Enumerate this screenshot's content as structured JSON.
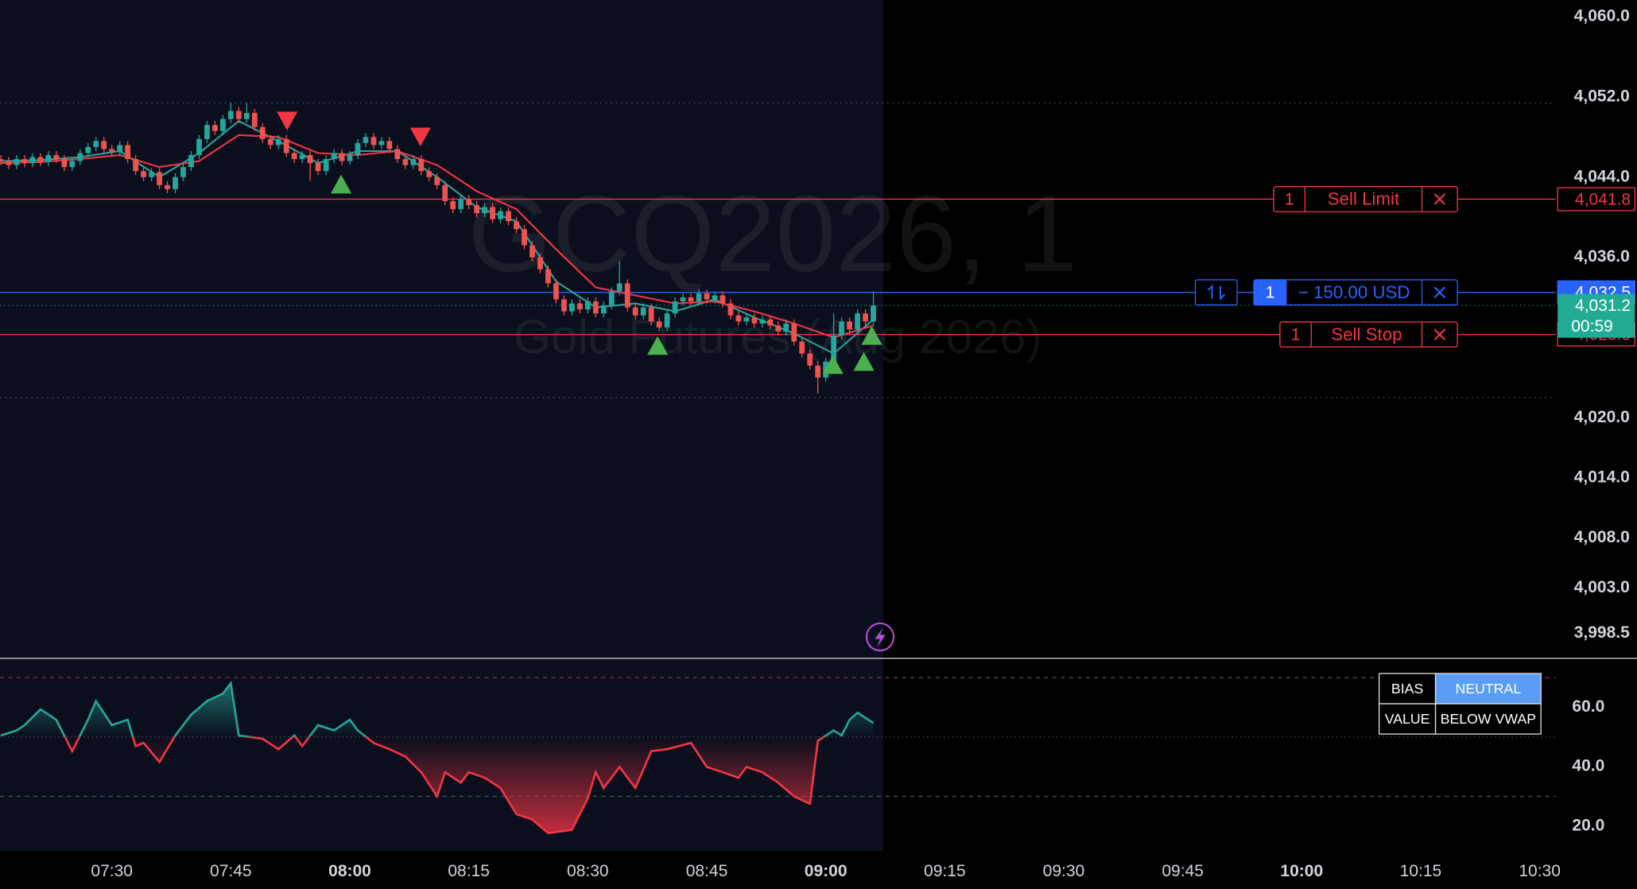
{
  "watermark": {
    "symbol": "GCQ2026, 1",
    "name": "Gold Futures (Aug 2026)"
  },
  "chart_data": [
    {
      "type": "candlestick",
      "x": [
        436,
        437,
        438,
        439,
        440,
        441,
        442,
        443,
        444,
        445,
        446,
        447,
        448,
        449,
        450,
        451,
        452,
        453,
        454,
        455,
        456,
        457,
        458,
        459,
        460,
        461,
        462,
        463,
        464,
        465,
        466,
        467,
        468,
        469,
        470,
        471,
        472,
        473,
        474,
        475,
        476,
        477,
        478,
        479,
        480,
        481,
        482,
        483,
        484,
        485,
        486,
        487,
        488,
        489,
        490,
        491,
        492,
        493,
        494,
        495,
        496,
        497,
        498,
        499,
        500,
        501,
        502,
        503,
        504,
        505,
        506,
        507,
        508,
        509,
        510,
        511,
        512,
        513,
        514,
        515,
        516,
        517,
        518,
        519,
        520,
        521,
        522,
        523,
        524,
        525,
        526,
        527,
        528,
        529,
        530,
        531,
        532,
        533,
        534,
        535,
        536,
        537,
        538,
        539,
        540,
        541,
        542,
        543,
        544,
        545,
        546
      ],
      "open": [
        4045.8,
        4045.6,
        4045.2,
        4045.8,
        4045.4,
        4046.0,
        4045.5,
        4046.2,
        4045.8,
        4045.0,
        4045.6,
        4046.4,
        4047.0,
        4047.6,
        4046.8,
        4046.5,
        4047.2,
        4045.8,
        4044.6,
        4044.0,
        4044.5,
        4043.2,
        4042.8,
        4044.0,
        4045.0,
        4046.2,
        4047.8,
        4049.2,
        4048.6,
        4049.8,
        4050.6,
        4049.8,
        4050.4,
        4049.0,
        4047.8,
        4047.2,
        4047.8,
        4046.4,
        4045.8,
        4046.2,
        4045.4,
        4044.6,
        4045.8,
        4046.4,
        4045.6,
        4046.2,
        4047.4,
        4048.0,
        4047.2,
        4047.6,
        4046.8,
        4045.8,
        4045.2,
        4045.8,
        4044.6,
        4044.0,
        4043.2,
        4041.6,
        4040.8,
        4041.8,
        4041.2,
        4040.4,
        4041.0,
        4039.8,
        4040.6,
        4039.6,
        4038.8,
        4037.2,
        4036.0,
        4034.8,
        4033.4,
        4031.8,
        4030.6,
        4031.4,
        4030.8,
        4031.6,
        4030.4,
        4031.2,
        4032.6,
        4033.4,
        4031.0,
        4030.2,
        4031.0,
        4029.6,
        4029.0,
        4030.4,
        4031.6,
        4032.0,
        4031.6,
        4032.4,
        4031.8,
        4032.2,
        4031.4,
        4030.2,
        4029.6,
        4030.0,
        4029.4,
        4029.8,
        4029.2,
        4028.6,
        4029.4,
        4027.6,
        4026.4,
        4025.2,
        4024.0,
        4025.6,
        4028.2,
        4029.6,
        4028.8,
        4030.4,
        4029.6
      ],
      "high": [
        4046.2,
        4046.0,
        4046.2,
        4046.2,
        4046.4,
        4046.4,
        4046.6,
        4046.6,
        4046.2,
        4046.0,
        4046.8,
        4047.4,
        4048.0,
        4048.0,
        4047.2,
        4047.6,
        4047.6,
        4046.2,
        4045.0,
        4044.9,
        4044.9,
        4043.6,
        4044.4,
        4045.4,
        4046.6,
        4048.2,
        4049.6,
        4049.6,
        4050.2,
        4051.4,
        4051.0,
        4051.4,
        4050.8,
        4049.4,
        4048.2,
        4048.2,
        4048.2,
        4046.8,
        4046.6,
        4046.6,
        4045.8,
        4046.2,
        4046.8,
        4046.8,
        4046.6,
        4047.8,
        4048.4,
        4048.4,
        4048.0,
        4048.0,
        4047.2,
        4046.2,
        4046.2,
        4046.2,
        4045.0,
        4044.4,
        4043.6,
        4042.0,
        4042.2,
        4042.2,
        4041.6,
        4041.4,
        4041.4,
        4041.0,
        4041.0,
        4040.0,
        4039.2,
        4037.6,
        4036.4,
        4035.2,
        4033.8,
        4032.2,
        4031.8,
        4031.8,
        4032.0,
        4032.0,
        4031.6,
        4033.0,
        4035.6,
        4033.8,
        4031.4,
        4031.4,
        4031.4,
        4030.0,
        4030.8,
        4032.0,
        4032.4,
        4032.4,
        4032.8,
        4032.8,
        4032.6,
        4032.6,
        4031.8,
        4030.6,
        4030.4,
        4030.4,
        4030.2,
        4030.2,
        4029.6,
        4029.8,
        4029.8,
        4028.0,
        4026.8,
        4025.6,
        4026.0,
        4030.4,
        4030.0,
        4030.0,
        4030.8,
        4030.8,
        4032.6
      ],
      "low": [
        4045.2,
        4044.8,
        4044.8,
        4045.0,
        4045.0,
        4045.1,
        4045.1,
        4045.4,
        4044.6,
        4044.6,
        4045.2,
        4046.0,
        4046.6,
        4046.4,
        4046.1,
        4046.1,
        4045.4,
        4044.2,
        4043.6,
        4043.6,
        4042.8,
        4042.4,
        4042.4,
        4043.6,
        4044.6,
        4045.8,
        4047.4,
        4048.2,
        4048.2,
        4049.4,
        4049.4,
        4049.4,
        4048.6,
        4047.4,
        4046.8,
        4046.8,
        4046.0,
        4045.4,
        4045.4,
        4043.6,
        4044.2,
        4044.2,
        4045.4,
        4045.2,
        4045.2,
        4045.8,
        4047.0,
        4046.8,
        4046.8,
        4046.4,
        4045.4,
        4044.8,
        4044.8,
        4044.2,
        4043.6,
        4042.8,
        4041.2,
        4040.4,
        4040.4,
        4040.8,
        4040.0,
        4040.0,
        4039.4,
        4039.4,
        4039.2,
        4038.4,
        4036.8,
        4035.6,
        4034.4,
        4033.0,
        4031.4,
        4030.2,
        4030.2,
        4030.4,
        4030.4,
        4030.0,
        4030.0,
        4030.8,
        4032.2,
        4030.6,
        4029.8,
        4029.8,
        4029.2,
        4028.6,
        4028.6,
        4030.0,
        4031.2,
        4031.2,
        4031.2,
        4031.4,
        4031.4,
        4031.0,
        4029.8,
        4029.2,
        4029.2,
        4029.0,
        4029.0,
        4028.8,
        4028.2,
        4028.2,
        4027.2,
        4026.0,
        4024.8,
        4022.4,
        4023.6,
        4025.2,
        4027.8,
        4028.4,
        4028.4,
        4029.2,
        4029.2
      ],
      "close": [
        4045.6,
        4045.2,
        4045.8,
        4045.4,
        4046.0,
        4045.5,
        4046.2,
        4045.8,
        4045.0,
        4045.6,
        4046.4,
        4047.0,
        4047.6,
        4046.8,
        4046.5,
        4047.2,
        4045.8,
        4044.6,
        4044.0,
        4044.5,
        4043.2,
        4042.8,
        4044.0,
        4045.0,
        4046.2,
        4047.8,
        4049.2,
        4048.6,
        4049.8,
        4050.6,
        4049.8,
        4050.4,
        4049.0,
        4047.8,
        4047.2,
        4047.8,
        4046.4,
        4045.8,
        4046.2,
        4045.4,
        4044.6,
        4045.8,
        4046.4,
        4045.6,
        4046.2,
        4047.4,
        4048.0,
        4047.2,
        4047.6,
        4046.8,
        4045.8,
        4045.2,
        4045.8,
        4044.6,
        4044.0,
        4043.2,
        4041.6,
        4040.8,
        4041.8,
        4041.2,
        4040.4,
        4041.0,
        4039.8,
        4040.6,
        4039.6,
        4038.8,
        4037.2,
        4036.0,
        4034.8,
        4033.4,
        4031.8,
        4030.6,
        4031.4,
        4030.8,
        4031.6,
        4030.4,
        4031.2,
        4032.6,
        4033.4,
        4031.0,
        4030.2,
        4031.0,
        4029.6,
        4029.0,
        4030.4,
        4031.6,
        4032.0,
        4031.6,
        4032.4,
        4031.8,
        4032.2,
        4031.4,
        4030.2,
        4029.6,
        4030.0,
        4029.4,
        4029.8,
        4029.2,
        4028.6,
        4029.4,
        4027.6,
        4026.4,
        4025.2,
        4024.0,
        4025.6,
        4028.2,
        4029.6,
        4028.8,
        4030.4,
        4029.6,
        4031.2
      ],
      "up_color": "#26a69a",
      "down_color": "#ef5350",
      "series": [
        {
          "color": "#26a69a",
          "x": [
            436,
            441,
            446,
            451,
            456,
            461,
            466,
            471,
            476,
            481,
            486,
            491,
            496,
            501,
            506,
            511,
            516,
            521,
            526,
            531,
            536,
            541,
            546
          ],
          "values": [
            4045.6,
            4045.7,
            4046.0,
            4046.6,
            4044.0,
            4046.4,
            4049.6,
            4047.6,
            4045.4,
            4046.6,
            4046.6,
            4044.0,
            4041.0,
            4039.6,
            4033.6,
            4031.0,
            4031.4,
            4030.6,
            4031.8,
            4030.0,
            4028.4,
            4026.4,
            4029.8
          ]
        },
        {
          "color": "#f23645",
          "x": [
            436,
            441,
            446,
            451,
            456,
            461,
            466,
            471,
            476,
            481,
            486,
            491,
            496,
            501,
            506,
            511,
            516,
            521,
            526,
            531,
            536,
            541,
            546
          ],
          "values": [
            4045.4,
            4045.5,
            4045.8,
            4046.2,
            4045.0,
            4045.6,
            4048.2,
            4048.0,
            4046.4,
            4046.2,
            4046.6,
            4045.2,
            4042.6,
            4040.8,
            4036.8,
            4033.0,
            4032.2,
            4031.4,
            4031.6,
            4030.6,
            4029.4,
            4028.0,
            4029.2
          ]
        }
      ],
      "sell_signals": {
        "color": "#f23645",
        "x": [
          472.1,
          488.9
        ],
        "y": [
          4049.7,
          4048.1
        ]
      },
      "buy_signals": {
        "color": "#4caf50",
        "x": [
          478.9,
          518.8,
          540.9,
          544.8,
          545.8
        ],
        "y": [
          4043.2,
          4027.1,
          4025.2,
          4025.5,
          4028.1
        ]
      },
      "levels": [
        4051.4,
        4022.0
      ],
      "orders": [
        {
          "quantity": 1,
          "label": "Sell Limit",
          "price": {
            "value": 4041.8,
            "label": "4,041.8"
          },
          "color": "#f23645"
        },
        {
          "quantity": 1,
          "label": "− 150.00 USD",
          "price": {
            "value": 4032.5,
            "label": "4,032.5"
          },
          "color": "#2962ff"
        },
        {
          "quantity": 1,
          "label": "Sell Stop",
          "price": {
            "value": 4028.3,
            "label": "4,028.3"
          },
          "color": "#f23645"
        }
      ],
      "last_price": {
        "value": 4031.2,
        "label": "4,031.2",
        "countdown": "00:59",
        "color": "#22ab94"
      },
      "xlim": [
        435.9,
        632.0
      ],
      "ylim": [
        3996.04,
        4061.67
      ],
      "grid": false,
      "yticks": [
        {
          "value": 4060,
          "label": "4,060.0"
        },
        {
          "value": 4052,
          "label": "4,052.0"
        },
        {
          "value": 4044,
          "label": "4,044.0"
        },
        {
          "value": 4036,
          "label": "4,036.0"
        },
        {
          "value": 4020,
          "label": "4,020.0"
        },
        {
          "value": 4014,
          "label": "4,014.0"
        },
        {
          "value": 4008,
          "label": "4,008.0"
        },
        {
          "value": 4003,
          "label": "4,003.0"
        },
        {
          "value": 3998.5,
          "label": "3,998.5"
        }
      ],
      "xticks": [
        {
          "value": 450,
          "label": "07:30"
        },
        {
          "value": 465,
          "label": "07:45"
        },
        {
          "value": 480,
          "label": "08:00"
        },
        {
          "value": 495,
          "label": "08:15"
        },
        {
          "value": 510,
          "label": "08:30"
        },
        {
          "value": 525,
          "label": "08:45"
        },
        {
          "value": 540,
          "label": "09:00"
        },
        {
          "value": 555,
          "label": "09:15"
        },
        {
          "value": 570,
          "label": "09:30"
        },
        {
          "value": 585,
          "label": "09:45"
        },
        {
          "value": 600,
          "label": "10:00"
        },
        {
          "value": 615,
          "label": "10:15"
        },
        {
          "value": 630,
          "label": "10:30"
        }
      ]
    },
    {
      "type": "oscillator",
      "x": [
        436,
        438,
        439,
        441,
        443,
        445,
        447,
        448,
        450,
        452,
        453,
        454,
        456,
        458,
        460,
        462,
        464,
        465,
        466,
        469,
        471,
        473,
        474,
        476,
        478,
        480,
        481,
        483,
        485,
        487,
        489,
        491,
        492,
        494,
        495,
        497,
        499,
        501,
        503,
        505,
        508,
        510,
        511,
        512,
        514,
        516,
        518,
        520,
        523,
        525,
        527,
        529,
        530,
        532,
        534,
        536,
        538,
        539,
        541,
        542,
        543,
        544,
        546
      ],
      "values": [
        50.5,
        52.2,
        54.0,
        59.3,
        55.8,
        45.2,
        55.8,
        62.1,
        54.0,
        55.8,
        46.9,
        48.0,
        41.6,
        50.5,
        57.5,
        62.1,
        64.6,
        68.1,
        50.5,
        49.4,
        45.9,
        50.5,
        46.9,
        54.0,
        52.2,
        55.8,
        52.2,
        48.0,
        45.9,
        43.4,
        38.1,
        30.0,
        38.1,
        34.6,
        38.1,
        36.3,
        32.8,
        24.0,
        22.2,
        17.6,
        18.7,
        29.3,
        38.1,
        32.8,
        39.9,
        32.8,
        45.2,
        45.9,
        48.0,
        39.9,
        38.1,
        36.3,
        39.9,
        38.1,
        34.6,
        30.0,
        27.5,
        48.7,
        52.2,
        50.5,
        55.8,
        58.2,
        54.7
      ],
      "up_color": "#26a69a",
      "down_color": "#f23645",
      "levels": [
        70,
        50,
        30
      ],
      "xlim": [
        435.9,
        632.0
      ],
      "ylim": [
        11.6,
        76.3
      ],
      "yticks": [
        {
          "value": 60,
          "label": "60.0"
        },
        {
          "value": 40,
          "label": "40.0"
        },
        {
          "value": 20,
          "label": "20.0"
        }
      ]
    }
  ],
  "bias_table": {
    "rows": [
      [
        "BIAS",
        "NEUTRAL"
      ],
      [
        "VALUE",
        "BELOW VWAP"
      ]
    ]
  }
}
